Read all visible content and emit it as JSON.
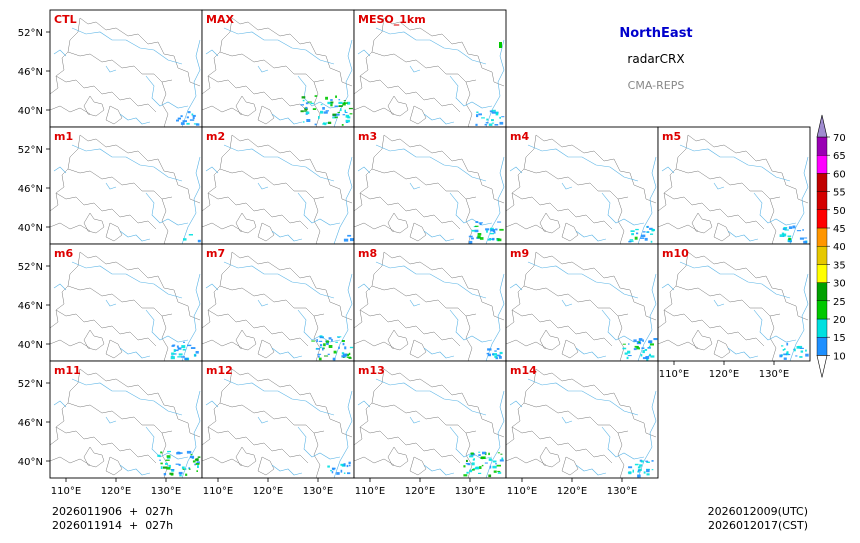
{
  "header": {
    "region": "NorthEast",
    "product": "radarCRX",
    "system": "CMA-REPS",
    "region_color": "#0000cc",
    "system_color": "#888888"
  },
  "panels": [
    [
      "CTL",
      "MAX",
      "MESO_1km"
    ],
    [
      "m1",
      "m2",
      "m3",
      "m4",
      "m5"
    ],
    [
      "m6",
      "m7",
      "m8",
      "m9",
      "m10"
    ],
    [
      "m11",
      "m12",
      "m13",
      "m14"
    ]
  ],
  "panel_label_color": "#dd0000",
  "lat_labels": [
    "52°N",
    "46°N",
    "40°N"
  ],
  "lon_labels": [
    "110°E",
    "120°E",
    "130°E"
  ],
  "colorbar": {
    "levels": [
      "10",
      "15",
      "20",
      "25",
      "30",
      "35",
      "40",
      "45",
      "50",
      "55",
      "60",
      "65",
      "70"
    ],
    "colors": [
      "#1e90ff",
      "#00e0e0",
      "#00c800",
      "#00a000",
      "#ffff00",
      "#e6c800",
      "#ff9600",
      "#ff0000",
      "#d40000",
      "#c00000",
      "#ff00ff",
      "#9a00b4"
    ],
    "under_color": "#ffffff",
    "over_color": "#a08cd0"
  },
  "footer": {
    "init_utc": "2026011906  +  027h",
    "init_cst": "2026011914  +  027h",
    "valid_utc": "2026012009(UTC)",
    "valid_cst": "2026012017(CST)"
  },
  "echo_intensity": {
    "CTL": 0.25,
    "MAX": 1.0,
    "MESO_1km": 0.35,
    "m1": 0.05,
    "m2": 0.05,
    "m3": 0.55,
    "m4": 0.35,
    "m5": 0.35,
    "m6": 0.4,
    "m7": 0.7,
    "m8": 0.2,
    "m9": 0.55,
    "m10": 0.35,
    "m11": 0.75,
    "m12": 0.25,
    "m13": 0.7,
    "m14": 0.35
  }
}
